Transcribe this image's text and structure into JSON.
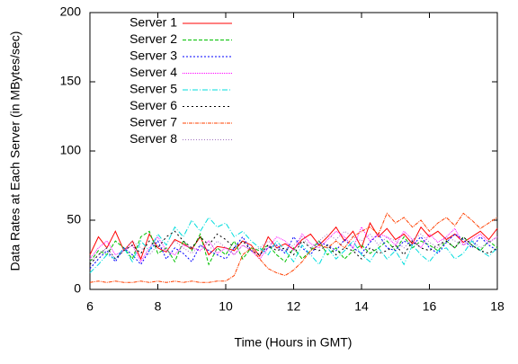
{
  "chart_data": {
    "type": "line",
    "xlabel": "Time (Hours in GMT)",
    "ylabel": "Data Rates at Each Server (in MBytes/sec)",
    "x": [
      6,
      6.25,
      6.5,
      6.75,
      7,
      7.25,
      7.5,
      7.75,
      8,
      8.25,
      8.5,
      8.75,
      9,
      9.25,
      9.5,
      9.75,
      10,
      10.25,
      10.5,
      10.75,
      11,
      11.25,
      11.5,
      11.75,
      12,
      12.25,
      12.5,
      12.75,
      13,
      13.25,
      13.5,
      13.75,
      14,
      14.25,
      14.5,
      14.75,
      15,
      15.25,
      15.5,
      15.75,
      16,
      16.25,
      16.5,
      16.75,
      17,
      17.25,
      17.5,
      17.75,
      18
    ],
    "xlim": [
      6,
      18
    ],
    "xticks": [
      6,
      8,
      10,
      12,
      14,
      16,
      18
    ],
    "ylim": [
      0,
      200
    ],
    "yticks": [
      0,
      50,
      100,
      150,
      200
    ],
    "legend": "top-left",
    "series": [
      {
        "name": "Server 1",
        "color": "#ff0000",
        "dash": "none",
        "values": [
          25,
          38,
          30,
          42,
          28,
          35,
          22,
          40,
          30,
          27,
          36,
          33,
          29,
          38,
          25,
          31,
          30,
          28,
          35,
          32,
          24,
          38,
          30,
          33,
          29,
          36,
          40,
          32,
          38,
          45,
          35,
          42,
          30,
          48,
          38,
          44,
          36,
          40,
          33,
          45,
          38,
          42,
          36,
          40,
          34,
          38,
          42,
          36,
          44
        ]
      },
      {
        "name": "Server 2",
        "color": "#00c000",
        "dash": "4,2",
        "values": [
          20,
          28,
          25,
          35,
          30,
          22,
          38,
          42,
          26,
          30,
          20,
          35,
          28,
          40,
          18,
          30,
          25,
          35,
          22,
          30,
          28,
          32,
          25,
          20,
          30,
          22,
          28,
          35,
          25,
          30,
          22,
          28,
          32,
          26,
          30,
          35,
          28,
          38,
          30,
          35,
          32,
          28,
          35,
          30,
          38,
          32,
          28,
          35,
          30
        ]
      },
      {
        "name": "Server 3",
        "color": "#0000ff",
        "dash": "2,2",
        "values": [
          15,
          22,
          28,
          20,
          30,
          25,
          18,
          28,
          35,
          22,
          30,
          26,
          20,
          32,
          28,
          25,
          22,
          30,
          38,
          28,
          25,
          30,
          32,
          26,
          38,
          30,
          25,
          34,
          32,
          28,
          36,
          30,
          26,
          34,
          40,
          30,
          28,
          35,
          32,
          38,
          30,
          26,
          34,
          40,
          36,
          30,
          38,
          32,
          28
        ]
      },
      {
        "name": "Server 4",
        "color": "#ff00ff",
        "dash": "1,1",
        "values": [
          22,
          30,
          35,
          25,
          28,
          32,
          20,
          30,
          38,
          28,
          25,
          32,
          30,
          28,
          35,
          26,
          30,
          25,
          32,
          28,
          22,
          30,
          38,
          35,
          28,
          40,
          33,
          30,
          36,
          42,
          38,
          30,
          45,
          35,
          40,
          38,
          32,
          42,
          36,
          30,
          40,
          34,
          38,
          44,
          32,
          36,
          40,
          34,
          38
        ]
      },
      {
        "name": "Server 5",
        "color": "#00dddd",
        "dash": "6,2,1,2",
        "values": [
          12,
          18,
          25,
          22,
          30,
          20,
          35,
          28,
          40,
          32,
          45,
          38,
          50,
          42,
          52,
          45,
          48,
          38,
          42,
          35,
          30,
          25,
          35,
          28,
          20,
          32,
          25,
          18,
          30,
          22,
          28,
          35,
          25,
          20,
          30,
          22,
          28,
          18,
          32,
          25,
          20,
          28,
          30,
          22,
          26,
          35,
          28,
          24,
          30
        ]
      },
      {
        "name": "Server 6",
        "color": "#000000",
        "dash": "2,3",
        "values": [
          18,
          25,
          30,
          22,
          28,
          32,
          26,
          35,
          30,
          38,
          42,
          35,
          30,
          38,
          32,
          40,
          36,
          30,
          35,
          28,
          25,
          32,
          28,
          30,
          25,
          35,
          30,
          28,
          32,
          25,
          30,
          28,
          22,
          30,
          26,
          28,
          32,
          25,
          35,
          30,
          28,
          32,
          35,
          30,
          38,
          32,
          28,
          26,
          30
        ]
      },
      {
        "name": "Server 7",
        "color": "#ff4000",
        "dash": "4,1,1,1",
        "values": [
          5,
          6,
          5,
          6,
          5,
          5,
          6,
          5,
          6,
          5,
          6,
          5,
          6,
          5,
          5,
          6,
          6,
          10,
          25,
          30,
          22,
          15,
          12,
          10,
          14,
          20,
          28,
          32,
          30,
          35,
          30,
          38,
          42,
          45,
          40,
          55,
          48,
          52,
          45,
          50,
          42,
          48,
          52,
          46,
          55,
          50,
          44,
          48,
          52
        ]
      },
      {
        "name": "Server 8",
        "color": "#a070c0",
        "dash": "1,2",
        "values": [
          20,
          25,
          30,
          22,
          28,
          35,
          30,
          25,
          32,
          28,
          35,
          30,
          26,
          32,
          28,
          35,
          30,
          25,
          32,
          28,
          30,
          35,
          30,
          28,
          32,
          38,
          30,
          35,
          40,
          36,
          42,
          38,
          35,
          40,
          32,
          38,
          35,
          30,
          36,
          40,
          34,
          30,
          38,
          35,
          32,
          36,
          30,
          34,
          38
        ]
      }
    ]
  }
}
